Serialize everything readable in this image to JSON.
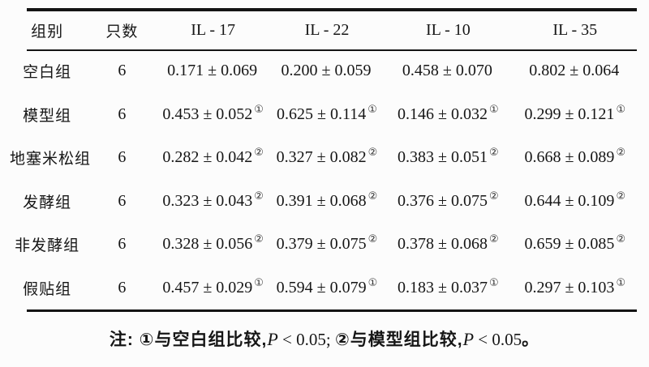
{
  "table": {
    "headers": [
      "组别",
      "只数",
      "IL - 17",
      "IL - 22",
      "IL - 10",
      "IL - 35"
    ],
    "rows": [
      {
        "group": "空白组",
        "n": "6",
        "c": [
          {
            "v": "0.171 ± 0.069",
            "m": ""
          },
          {
            "v": "0.200 ± 0.059",
            "m": ""
          },
          {
            "v": "0.458 ± 0.070",
            "m": ""
          },
          {
            "v": "0.802 ± 0.064",
            "m": ""
          }
        ]
      },
      {
        "group": "模型组",
        "n": "6",
        "c": [
          {
            "v": "0.453 ± 0.052",
            "m": "①"
          },
          {
            "v": "0.625 ± 0.114",
            "m": "①"
          },
          {
            "v": "0.146 ± 0.032",
            "m": "①"
          },
          {
            "v": "0.299 ± 0.121",
            "m": "①"
          }
        ]
      },
      {
        "group": "地塞米松组",
        "n": "6",
        "c": [
          {
            "v": "0.282 ± 0.042",
            "m": "②"
          },
          {
            "v": "0.327 ± 0.082",
            "m": "②"
          },
          {
            "v": "0.383 ± 0.051",
            "m": "②"
          },
          {
            "v": "0.668 ± 0.089",
            "m": "②"
          }
        ]
      },
      {
        "group": "发酵组",
        "n": "6",
        "c": [
          {
            "v": "0.323 ± 0.043",
            "m": "②"
          },
          {
            "v": "0.391 ± 0.068",
            "m": "②"
          },
          {
            "v": "0.376 ± 0.075",
            "m": "②"
          },
          {
            "v": "0.644 ± 0.109",
            "m": "②"
          }
        ]
      },
      {
        "group": "非发酵组",
        "n": "6",
        "c": [
          {
            "v": "0.328 ± 0.056",
            "m": "②"
          },
          {
            "v": "0.379 ± 0.075",
            "m": "②"
          },
          {
            "v": "0.378 ± 0.068",
            "m": "②"
          },
          {
            "v": "0.659 ± 0.085",
            "m": "②"
          }
        ]
      },
      {
        "group": "假贴组",
        "n": "6",
        "c": [
          {
            "v": "0.457 ± 0.029",
            "m": "①"
          },
          {
            "v": "0.594 ± 0.079",
            "m": "①"
          },
          {
            "v": "0.183 ± 0.037",
            "m": "①"
          },
          {
            "v": "0.297 ± 0.103",
            "m": "①"
          }
        ]
      }
    ]
  },
  "footnote": {
    "segments": [
      {
        "t": "注: ①与空白组比较,"
      },
      {
        "t": "P"
      },
      {
        "t": " < 0.05; "
      },
      {
        "t": "②与模型组比较,"
      },
      {
        "t": "P"
      },
      {
        "t": " < 0.05"
      },
      {
        "t": "。"
      }
    ]
  }
}
